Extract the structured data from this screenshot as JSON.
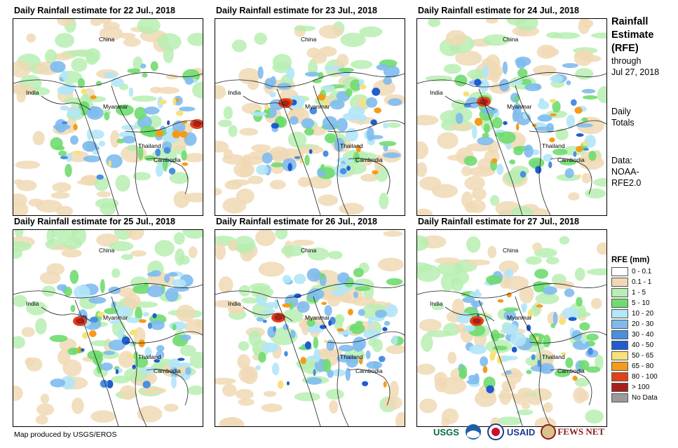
{
  "panels": [
    {
      "title": "Daily Rainfall estimate for 22 Jul., 2018"
    },
    {
      "title": "Daily Rainfall estimate for 23 Jul., 2018"
    },
    {
      "title": "Daily Rainfall estimate for 24 Jul., 2018"
    },
    {
      "title": "Daily Rainfall estimate for 25 Jul., 2018"
    },
    {
      "title": "Daily Rainfall estimate for 26 Jul., 2018"
    },
    {
      "title": "Daily Rainfall estimate for 27 Jul., 2018"
    }
  ],
  "place_labels": {
    "china": "China",
    "india": "India",
    "myanmar": "Myanmar",
    "thailand": "Thailand",
    "cambodia": "Cambodia"
  },
  "side": {
    "title_l1": "Rainfall",
    "title_l2": "Estimate",
    "title_l3": "(RFE)",
    "through": "through",
    "date": "Jul 27, 2018",
    "daily": "Daily",
    "totals": "Totals",
    "data_label": "Data:",
    "source_l1": "NOAA-",
    "source_l2": "RFE2.0"
  },
  "legend": {
    "title": "RFE (mm)",
    "items": [
      {
        "label": "0 - 0.1",
        "color": "#ffffff"
      },
      {
        "label": "0.1 - 1",
        "color": "#f0d9b5"
      },
      {
        "label": "1 - 5",
        "color": "#b7eeb2"
      },
      {
        "label": "5 - 10",
        "color": "#6fdc6f"
      },
      {
        "label": "10 - 20",
        "color": "#b3e6f7"
      },
      {
        "label": "20 - 30",
        "color": "#7fbbee"
      },
      {
        "label": "30 - 40",
        "color": "#4a8fe0"
      },
      {
        "label": "40 - 50",
        "color": "#1f5ccf"
      },
      {
        "label": "50 - 65",
        "color": "#f6e27a"
      },
      {
        "label": "65 - 80",
        "color": "#f59b1a"
      },
      {
        "label": "80 - 100",
        "color": "#e3401a"
      },
      {
        "label": "> 100",
        "color": "#a8201a"
      },
      {
        "label": "No Data",
        "color": "#9a9a9a"
      }
    ]
  },
  "credit": "Map produced by USGS/EROS",
  "logos": {
    "usgs": "USGS",
    "usaid": "USAID",
    "fewsnet": "FEWS NET"
  }
}
